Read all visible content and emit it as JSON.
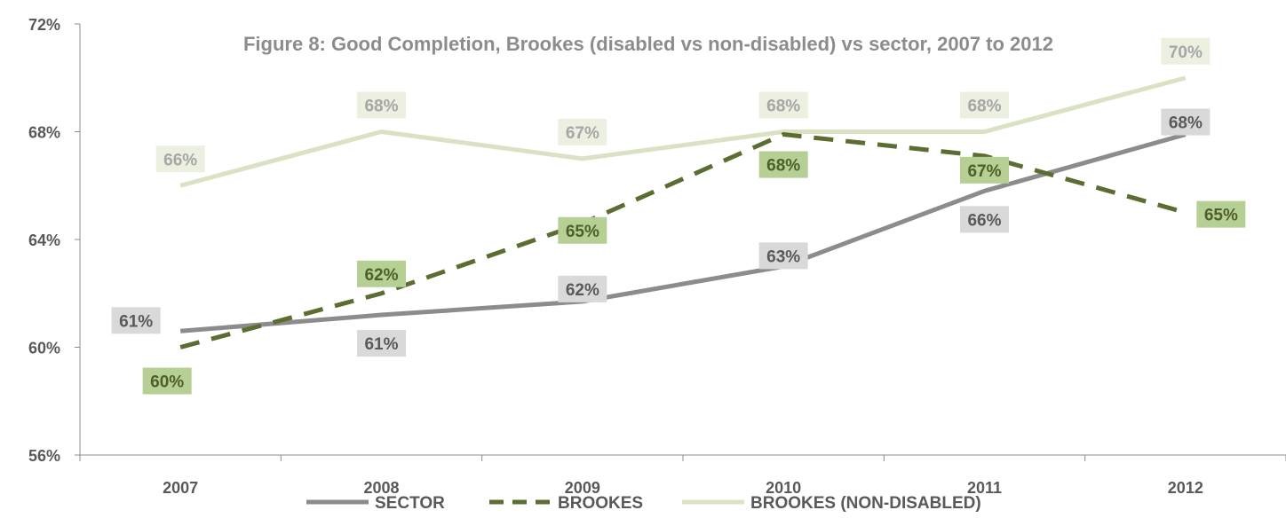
{
  "chart_data": {
    "type": "line",
    "title": "Figure 8: Good Completion, Brookes (disabled vs non-disabled) vs sector, 2007 to 2012",
    "xlabel": "",
    "ylabel": "",
    "categories": [
      "2007",
      "2008",
      "2009",
      "2010",
      "2011",
      "2012"
    ],
    "ylim": [
      56,
      72
    ],
    "yticks": [
      "56%",
      "60%",
      "64%",
      "68%",
      "72%"
    ],
    "grid": false,
    "legend_position": "bottom",
    "series": [
      {
        "name": "SECTOR",
        "values": [
          60.6,
          61.2,
          61.7,
          63.0,
          65.8,
          67.9
        ],
        "labels": [
          "61%",
          "61%",
          "62%",
          "63%",
          "66%",
          "68%"
        ],
        "color": "#8c8c8c",
        "style": "solid",
        "label_bg": "#d9d9d9",
        "label_color": "#595959"
      },
      {
        "name": "BROOKES",
        "values": [
          60.0,
          62.0,
          64.6,
          67.9,
          67.1,
          65.0
        ],
        "labels": [
          "60%",
          "62%",
          "65%",
          "68%",
          "67%",
          "65%"
        ],
        "color": "#5a6e32",
        "style": "dashed",
        "label_bg": "#b5cf94",
        "label_color": "#4f5f2b"
      },
      {
        "name": "BROOKES (NON-DISABLED)",
        "values": [
          66.0,
          68.0,
          67.0,
          68.0,
          68.0,
          70.0
        ],
        "labels": [
          "66%",
          "68%",
          "67%",
          "68%",
          "68%",
          "70%"
        ],
        "color": "#d9e3c4",
        "style": "solid",
        "label_bg": "#ecf0e1",
        "label_color": "#a6a6a6"
      }
    ]
  }
}
